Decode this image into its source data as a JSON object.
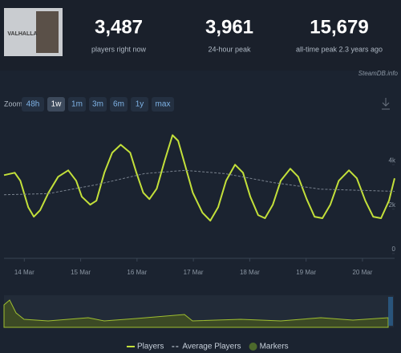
{
  "header": {
    "game": "VALHALLA",
    "stats": [
      {
        "value": "3,487",
        "label": "players right now"
      },
      {
        "value": "3,961",
        "label": "24-hour peak"
      },
      {
        "value": "15,679",
        "label": "all-time peak 2.3 years ago"
      }
    ]
  },
  "source": "SteamDB.info",
  "zoom": {
    "label": "Zoom",
    "options": [
      "48h",
      "1w",
      "1m",
      "3m",
      "6m",
      "1y",
      "max"
    ],
    "active": 1
  },
  "chart_data": {
    "type": "line",
    "series": [
      {
        "name": "Players",
        "color": "#c3e03a",
        "dash": false,
        "x": [
          13.64,
          13.83,
          13.93,
          14.07,
          14.17,
          14.28,
          14.43,
          14.6,
          14.78,
          14.92,
          15.02,
          15.17,
          15.28,
          15.42,
          15.56,
          15.71,
          15.88,
          15.99,
          16.11,
          16.22,
          16.35,
          16.49,
          16.63,
          16.73,
          16.85,
          16.99,
          17.16,
          17.3,
          17.44,
          17.58,
          17.74,
          17.88,
          18.01,
          18.15,
          18.27,
          18.41,
          18.55,
          18.72,
          18.86,
          19.01,
          19.15,
          19.29,
          19.43,
          19.58,
          19.76,
          19.9,
          20.05,
          20.19,
          20.33,
          20.47,
          20.57
        ],
        "values": [
          3530,
          3640,
          3280,
          2090,
          1660,
          1950,
          2740,
          3460,
          3750,
          3280,
          2560,
          2200,
          2380,
          3640,
          4540,
          4900,
          4540,
          3640,
          2740,
          2450,
          2920,
          4180,
          5330,
          5080,
          4000,
          2740,
          1840,
          1480,
          2090,
          3280,
          4000,
          3640,
          2560,
          1730,
          1590,
          2200,
          3280,
          3820,
          3460,
          2450,
          1660,
          1590,
          2200,
          3280,
          3750,
          3390,
          2380,
          1660,
          1590,
          2380,
          3390
        ]
      },
      {
        "name": "Average Players",
        "color": "#7a838f",
        "dash": true,
        "x": [
          13.64,
          14.43,
          15.28,
          16.13,
          16.85,
          17.56,
          18.41,
          19.26,
          20.57
        ],
        "values": [
          2650,
          2700,
          3100,
          3600,
          3750,
          3600,
          3200,
          2900,
          2800
        ]
      }
    ],
    "markers": {
      "name": "Markers",
      "color": "#4d6a2c"
    },
    "xlim": [
      13.64,
      20.57
    ],
    "xticks": [
      {
        "value": 14,
        "label": "14 Mar"
      },
      {
        "value": 15,
        "label": "15 Mar"
      },
      {
        "value": 16,
        "label": "16 Mar"
      },
      {
        "value": 17,
        "label": "17 Mar"
      },
      {
        "value": 18,
        "label": "18 Mar"
      },
      {
        "value": 19,
        "label": "19 Mar"
      },
      {
        "value": 20,
        "label": "20 Mar"
      }
    ],
    "ylim": [
      0,
      6000
    ],
    "yticks": [
      0,
      {
        "value": 2000,
        "label": "2k"
      },
      {
        "value": 4000,
        "label": "4k"
      }
    ],
    "grid": false
  }
}
